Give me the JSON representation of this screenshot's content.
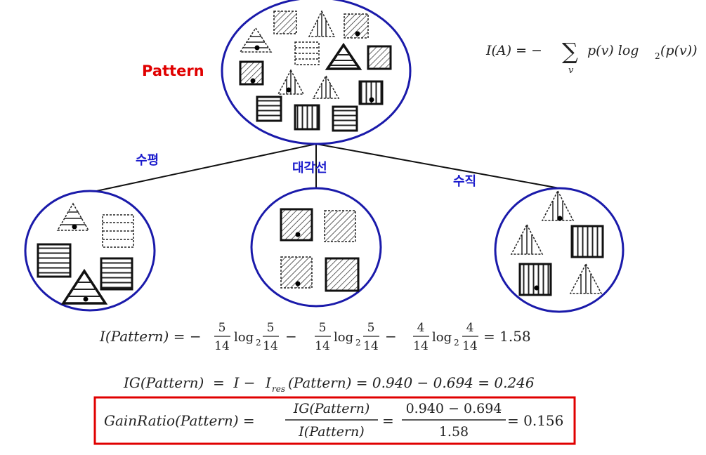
{
  "diagram": {
    "root_label": "Pattern",
    "root_label_color": "#e00000",
    "branch_color": "#1a1acc",
    "circle_color": "#1a1aaa",
    "highlight_box_color": "#e00000",
    "branches": [
      {
        "label": "수평",
        "child_shapes": [
          "triangle-horizontal-dot",
          "square-horizontal-dashed",
          "square-horizontal",
          "square-horizontal",
          "triangle-horizontal-dot-bold"
        ]
      },
      {
        "label": "대각선",
        "child_shapes": [
          "square-diagonal-dot-bold",
          "square-diagonal-dashed",
          "square-diagonal-dot-dashed",
          "square-diagonal-bold"
        ]
      },
      {
        "label": "수직",
        "child_shapes": [
          "triangle-vertical-dot",
          "triangle-vertical",
          "square-vertical",
          "square-vertical-dot",
          "triangle-vertical"
        ]
      }
    ]
  },
  "formulas": {
    "entropy_def": {
      "lhs": "I(A) = −",
      "sum_sub": "v",
      "rhs": "p(v) log",
      "base": "2",
      "tail": "(p(v))"
    },
    "entropy_pattern": {
      "lhs": "I(Pattern) = −",
      "t1_num": "5",
      "t1_den": "14",
      "t1_log": "log",
      "t1_base": "2",
      "t1_anum": "5",
      "t1_aden": "14",
      "minus1": "−",
      "t2_num": "5",
      "t2_den": "14",
      "t2_log": "log",
      "t2_base": "2",
      "t2_anum": "5",
      "t2_aden": "14",
      "minus2": "−",
      "t3_num": "4",
      "t3_den": "14",
      "t3_log": "log",
      "t3_base": "2",
      "t3_anum": "4",
      "t3_aden": "14",
      "result": "= 1.58"
    },
    "info_gain": {
      "lhs": "IG(Pattern)  =  I −",
      "ires": "I",
      "ires_sub": "res",
      "rest": "(Pattern) = 0.940 − 0.694 = 0.246"
    },
    "gain_ratio": {
      "lhs": "GainRatio(Pattern) =",
      "frac1_num": "IG(Pattern)",
      "frac1_den": "I(Pattern)",
      "eq": "=",
      "frac2_num": "0.940 − 0.694",
      "frac2_den": "1.58",
      "result": "= 0.156"
    }
  }
}
